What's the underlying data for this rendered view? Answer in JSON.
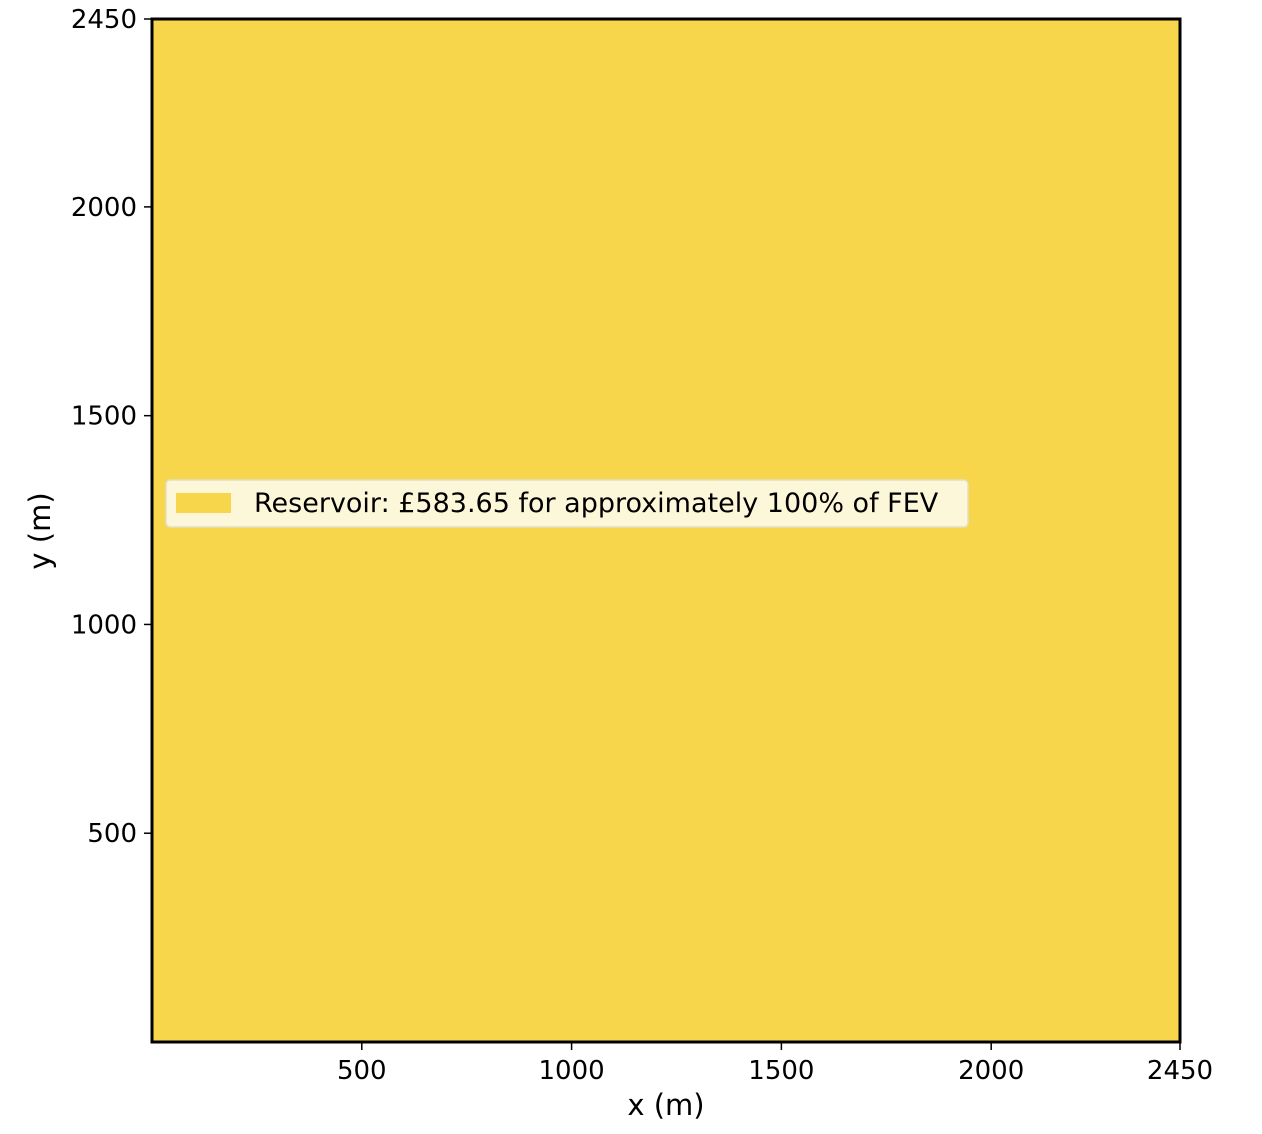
{
  "chart_data": {
    "type": "area",
    "title": "",
    "xlabel": "x (m)",
    "ylabel": "y (m)",
    "xlim": [
      0,
      2450
    ],
    "ylim": [
      0,
      2450
    ],
    "xticks": [
      500,
      1000,
      1500,
      2000,
      2450
    ],
    "yticks": [
      500,
      1000,
      1500,
      2000,
      2450
    ],
    "grid": false,
    "legend_position": "center-left",
    "series": [
      {
        "name": "Reservoir: £583.65 for approximately 100% of FEV",
        "color": "#f7d64b",
        "region": {
          "x": [
            0,
            2450
          ],
          "y": [
            0,
            2450
          ]
        },
        "coverage_percent": 100
      }
    ]
  }
}
